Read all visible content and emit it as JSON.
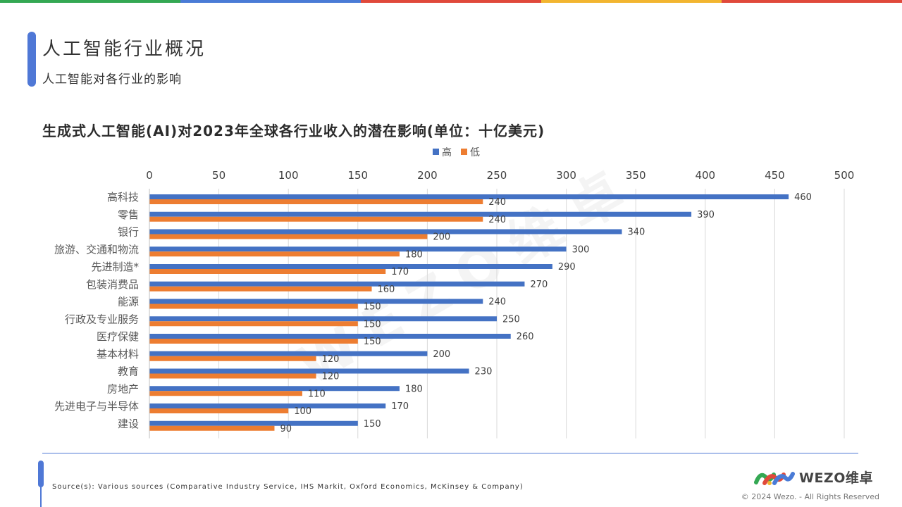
{
  "header": {
    "title": "人工智能行业概况",
    "subtitle": "人工智能对各行业的影响"
  },
  "colors": {
    "top_bar": [
      "#34a853",
      "#4a7bd6",
      "#e0493b",
      "#f2b530",
      "#e0493b"
    ],
    "accent": "#4f78d6",
    "series_high": "#4472c4",
    "series_low": "#ed7d31"
  },
  "watermark": "WEZO维卓",
  "chart_data": {
    "type": "bar",
    "orientation": "horizontal",
    "title": "生成式人工智能(AI)对2023年全球各行业收入的潜在影响(单位：十亿美元)",
    "categories": [
      "高科技",
      "零售",
      "银行",
      "旅游、交通和物流",
      "先进制造*",
      "包装消费品",
      "能源",
      "行政及专业服务",
      "医疗保健",
      "基本材料",
      "教育",
      "房地产",
      "先进电子与半导体",
      "建设"
    ],
    "series": [
      {
        "name": "高",
        "values": [
          460,
          390,
          340,
          300,
          290,
          270,
          240,
          250,
          260,
          200,
          230,
          180,
          170,
          150
        ]
      },
      {
        "name": "低",
        "values": [
          240,
          240,
          200,
          180,
          170,
          160,
          150,
          150,
          150,
          120,
          120,
          110,
          100,
          90
        ]
      }
    ],
    "xlim": [
      0,
      500
    ],
    "xticks": [
      0,
      50,
      100,
      150,
      200,
      250,
      300,
      350,
      400,
      450,
      500
    ],
    "x_axis_position": "top",
    "grid": true,
    "legend_position": "top-center",
    "data_labels": true
  },
  "footer": {
    "source": "Source(s): Various sources (Comparative Industry Service, IHS Markit, Oxford Economics, McKinsey & Company)",
    "logo_text": "WEZO维卓",
    "copyright": "© 2024 Wezo. - All Rights Reserved"
  }
}
